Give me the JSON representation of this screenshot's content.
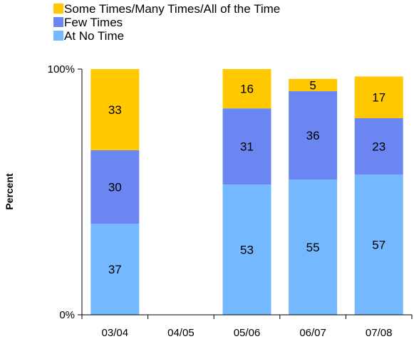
{
  "chart_data": {
    "type": "bar",
    "stacked": true,
    "percent_stacked": true,
    "title": "",
    "xlabel": "",
    "ylabel": "Percent",
    "ylim": [
      0,
      100
    ],
    "y_tick_labels": [
      "0%",
      "100%"
    ],
    "categories": [
      "03/04",
      "04/05",
      "05/06",
      "06/07",
      "07/08"
    ],
    "series": [
      {
        "name": "At No Time",
        "color": "#74b8ff",
        "values": [
          37,
          null,
          53,
          55,
          57
        ]
      },
      {
        "name": "Few Times",
        "color": "#6b86f0",
        "values": [
          30,
          null,
          31,
          36,
          23
        ]
      },
      {
        "name": "Some Times/Many Times/All of the Time",
        "color": "#ffc800",
        "values": [
          33,
          null,
          16,
          5,
          17
        ]
      }
    ],
    "legend_order": [
      "Some Times/Many Times/All of the Time",
      "Few Times",
      "At No Time"
    ],
    "legend_position": "top",
    "data_labels": true,
    "grid": false
  }
}
